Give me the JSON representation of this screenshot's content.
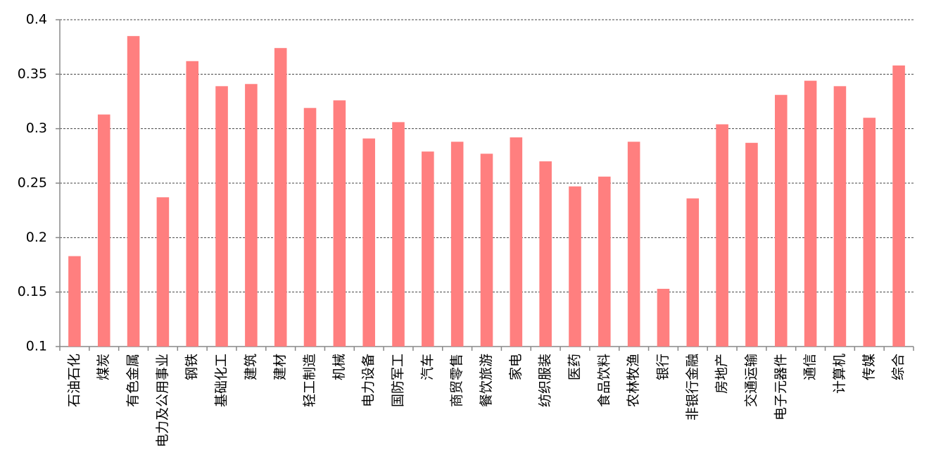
{
  "chart_data": {
    "type": "bar",
    "categories": [
      "石油石化",
      "煤炭",
      "有色金属",
      "电力及公用事业",
      "钢铁",
      "基础化工",
      "建筑",
      "建材",
      "轻工制造",
      "机械",
      "电力设备",
      "国防军工",
      "汽车",
      "商贸零售",
      "餐饮旅游",
      "家电",
      "纺织服装",
      "医药",
      "食品饮料",
      "农林牧渔",
      "银行",
      "非银行金融",
      "房地产",
      "交通运输",
      "电子元器件",
      "通信",
      "计算机",
      "传媒",
      "综合"
    ],
    "values": [
      0.183,
      0.313,
      0.385,
      0.237,
      0.362,
      0.339,
      0.341,
      0.374,
      0.319,
      0.326,
      0.291,
      0.306,
      0.279,
      0.288,
      0.277,
      0.292,
      0.27,
      0.247,
      0.256,
      0.288,
      0.153,
      0.236,
      0.304,
      0.287,
      0.331,
      0.344,
      0.339,
      0.31,
      0.358
    ],
    "color": "#ff7f7f",
    "ylim": [
      0.1,
      0.4
    ],
    "yticks": [
      0.1,
      0.15,
      0.2,
      0.25,
      0.3,
      0.35,
      0.4
    ],
    "grid": true
  }
}
